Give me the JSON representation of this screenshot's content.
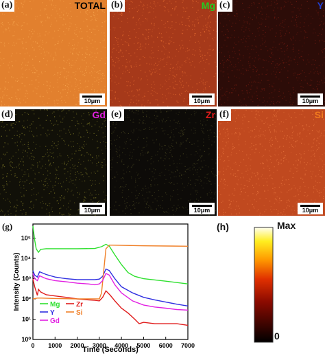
{
  "panels": [
    {
      "label": "(a)",
      "element": "TOTAL",
      "element_color": "#000000",
      "base_color": "#e2802e",
      "dot_color": "#f4a04a",
      "scale": "10μm"
    },
    {
      "label": "(b)",
      "element": "Mg",
      "element_color": "#22cc22",
      "base_color": "#a6391a",
      "dot_color": "#d9622c",
      "scale": "10μm"
    },
    {
      "label": "(c)",
      "element": "Y",
      "element_color": "#1f3fd6",
      "base_color": "#2c0c08",
      "dot_color": "#6a1a10",
      "scale": "10μm"
    },
    {
      "label": "(d)",
      "element": "Gd",
      "element_color": "#e21fe2",
      "base_color": "#111008",
      "dot_color": "#6f6a22",
      "scale": "10μm"
    },
    {
      "label": "(e)",
      "element": "Zr",
      "element_color": "#e01c1c",
      "base_color": "#0d0b08",
      "dot_color": "#3c3a1c",
      "scale": "10μm"
    },
    {
      "label": "(f)",
      "element": "Si",
      "element_color": "#f07a1e",
      "base_color": "#c0491f",
      "dot_color": "#e2703a",
      "scale": "10μm"
    }
  ],
  "chart_data": {
    "type": "line",
    "label": "(g)",
    "xlabel": "Time (Seconds)",
    "ylabel": "Intensity (Counts)",
    "xlim": [
      0,
      7000
    ],
    "ylim": [
      1,
      500000
    ],
    "yscale": "log",
    "xticks": [
      0,
      1000,
      2000,
      3000,
      4000,
      5000,
      6000,
      7000
    ],
    "yticks": [
      {
        "v": 1,
        "label": "10⁰"
      },
      {
        "v": 10,
        "label": "10¹"
      },
      {
        "v": 100,
        "label": "10²"
      },
      {
        "v": 1000,
        "label": "10³"
      },
      {
        "v": 10000,
        "label": "10⁴"
      },
      {
        "v": 100000,
        "label": "10⁵"
      }
    ],
    "series": [
      {
        "name": "Mg",
        "color": "#2ee02e",
        "x": [
          0,
          80,
          150,
          250,
          350,
          600,
          1000,
          2000,
          2800,
          3100,
          3300,
          3450,
          3700,
          4000,
          4300,
          4600,
          5000,
          6000,
          7000
        ],
        "y": [
          400000,
          80000,
          30000,
          20000,
          28000,
          30000,
          30000,
          30000,
          31000,
          38000,
          50000,
          40000,
          15000,
          5000,
          2000,
          1300,
          1000,
          750,
          550
        ]
      },
      {
        "name": "Zr",
        "color": "#e01c1c",
        "x": [
          0,
          80,
          200,
          250,
          350,
          600,
          1000,
          1500,
          2000,
          2500,
          2800,
          3000,
          3150,
          3300,
          3500,
          3700,
          4000,
          4300,
          4600,
          4800,
          5000,
          5500,
          6000,
          6500,
          7000
        ],
        "y": [
          1000,
          400,
          150,
          300,
          220,
          160,
          140,
          120,
          100,
          90,
          85,
          80,
          120,
          250,
          150,
          80,
          35,
          20,
          10,
          6,
          7,
          6,
          6,
          6,
          5
        ]
      },
      {
        "name": "Y",
        "color": "#2f2fe0",
        "x": [
          0,
          80,
          200,
          300,
          600,
          1000,
          1500,
          2000,
          2500,
          2800,
          3000,
          3150,
          3300,
          3450,
          3700,
          4000,
          4500,
          5000,
          5500,
          6000,
          6500,
          7000
        ],
        "y": [
          2500,
          1500,
          1200,
          2200,
          1600,
          1200,
          1000,
          900,
          900,
          900,
          950,
          1300,
          3000,
          2500,
          1000,
          400,
          200,
          120,
          90,
          70,
          55,
          45
        ]
      },
      {
        "name": "Si",
        "color": "#f08028",
        "x": [
          0,
          200,
          400,
          1000,
          2000,
          2800,
          3000,
          3100,
          3200,
          3300,
          3450,
          3600,
          4000,
          5000,
          6000,
          7000
        ],
        "y": [
          100,
          110,
          110,
          105,
          100,
          100,
          100,
          200,
          2500,
          30000,
          45000,
          45000,
          44000,
          42000,
          41000,
          40000
        ]
      },
      {
        "name": "Gd",
        "color": "#e21fe2",
        "x": [
          0,
          80,
          200,
          300,
          600,
          1000,
          1500,
          2000,
          2500,
          2800,
          3000,
          3150,
          3300,
          3450,
          3700,
          4000,
          4500,
          5000,
          5500,
          6000,
          6500,
          7000
        ],
        "y": [
          1800,
          1000,
          800,
          1400,
          1000,
          800,
          700,
          600,
          550,
          500,
          550,
          800,
          1800,
          1500,
          500,
          200,
          80,
          50,
          40,
          35,
          30,
          28
        ]
      }
    ]
  },
  "colorbar": {
    "label": "(h)",
    "max_label": "Max",
    "min_label": "0"
  }
}
